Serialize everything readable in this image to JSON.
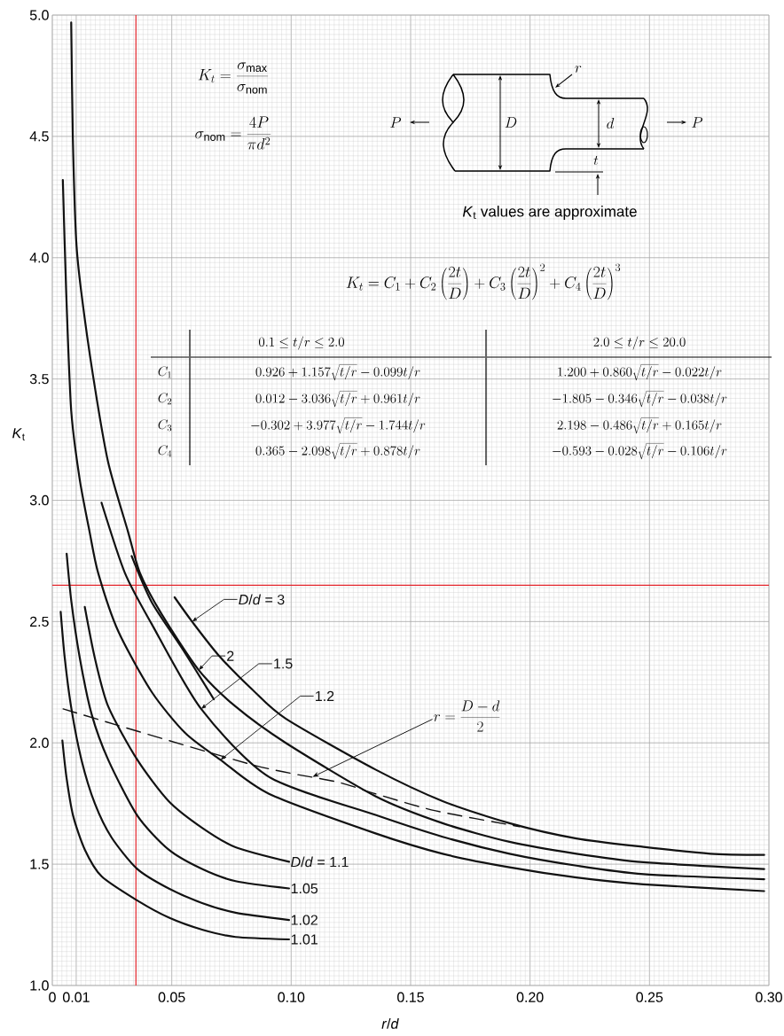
{
  "chart_data": {
    "type": "line",
    "xlabel": "*r*/*d*",
    "ylabel": "*K*$_{t}$",
    "xlim": [
      0,
      0.3
    ],
    "ylim": [
      1.0,
      5.0
    ],
    "xticks": [
      0,
      0.01,
      0.05,
      {
        "value": 0.1,
        "label": "0.10"
      },
      0.15,
      {
        "value": 0.2,
        "label": "0.20"
      },
      0.25,
      {
        "value": 0.3,
        "label": "0.30"
      }
    ],
    "yticks": [
      {
        "value": 1.0,
        "label": "1.0"
      },
      1.5,
      {
        "value": 2.0,
        "label": "2.0"
      },
      2.5,
      {
        "value": 3.0,
        "label": "3.0"
      },
      3.5,
      {
        "value": 4.0,
        "label": "4.0"
      },
      4.5,
      {
        "value": 5.0,
        "label": "5.0"
      }
    ],
    "grid": true,
    "series": [
      {
        "name": "1.01",
        "color": "#111111",
        "x": [
          0.0042,
          0.0059,
          0.0087,
          0.0136,
          0.0206,
          0.0356,
          0.0487,
          0.0627,
          0.0767,
          0.0991
        ],
        "values": [
          2.01,
          1.86,
          1.7,
          1.56,
          1.45,
          1.35,
          1.28,
          1.23,
          1.2,
          1.19
        ]
      },
      {
        "name": "1.02",
        "color": "#111111",
        "x": [
          0.0035,
          0.0052,
          0.008,
          0.0122,
          0.0178,
          0.0248,
          0.0356,
          0.0487,
          0.0627,
          0.0767,
          0.0991
        ],
        "values": [
          2.54,
          2.35,
          2.14,
          1.93,
          1.75,
          1.61,
          1.48,
          1.4,
          1.34,
          1.3,
          1.27
        ]
      },
      {
        "name": "1.05",
        "color": "#111111",
        "x": [
          0.006,
          0.008,
          0.0115,
          0.0164,
          0.0234,
          0.0356,
          0.0487,
          0.0627,
          0.0767,
          0.0991
        ],
        "values": [
          2.78,
          2.58,
          2.35,
          2.12,
          1.93,
          1.7,
          1.56,
          1.48,
          1.43,
          1.4
        ]
      },
      {
        "name": "*D*/*d* = 1.1",
        "color": "#111111",
        "x": [
          0.0136,
          0.0178,
          0.0234,
          0.0356,
          0.0487,
          0.0627,
          0.0767,
          0.0991
        ],
        "values": [
          2.56,
          2.35,
          2.15,
          1.93,
          1.76,
          1.65,
          1.57,
          1.51
        ]
      },
      {
        "name": "1.2",
        "color": "#111111",
        "x": [
          0.0044,
          0.0058,
          0.0079,
          0.0114,
          0.0156,
          0.0192,
          0.0276,
          0.0416,
          0.0557,
          0.0704,
          0.0907,
          0.1353,
          0.1634,
          0.1914,
          0.2194,
          0.2475,
          0.298
        ],
        "values": [
          4.32,
          3.86,
          3.37,
          3.09,
          2.87,
          2.7,
          2.46,
          2.21,
          2.04,
          1.93,
          1.79,
          1.627,
          1.543,
          1.487,
          1.445,
          1.417,
          1.389
        ]
      },
      {
        "name": "1.5",
        "color": "#111111",
        "x": [
          0.0206,
          0.0304,
          0.0416,
          0.0623,
          0.0907,
          0.1353,
          0.1634,
          0.1914,
          0.2194,
          0.2475,
          0.298
        ],
        "values": [
          2.99,
          2.7,
          2.49,
          2.14,
          1.86,
          1.703,
          1.613,
          1.543,
          1.494,
          1.459,
          1.438
        ]
      },
      {
        "name": "2",
        "color": "#111111",
        "x": [
          0.0079,
          0.0086,
          0.01,
          0.0121,
          0.0171,
          0.0233,
          0.0317,
          0.0367,
          0.0458,
          0.0613,
          0.0767,
          0.0977,
          0.1353,
          0.1634,
          0.1914,
          0.2194,
          0.2475,
          0.298
        ],
        "values": [
          4.97,
          4.49,
          4.07,
          3.86,
          3.51,
          3.16,
          2.87,
          2.7,
          2.53,
          2.3,
          2.15,
          2.0,
          1.78,
          1.669,
          1.592,
          1.543,
          1.508,
          1.48
        ]
      },
      {
        "name": "*D*/*d* = 3",
        "color": "#111111",
        "x": [
          0.0512,
          0.0585,
          0.0697,
          0.0837,
          0.0977,
          0.1353,
          0.1634,
          0.1914,
          0.2194,
          0.2475,
          0.2755,
          0.298
        ],
        "values": [
          2.6,
          2.5,
          2.36,
          2.22,
          2.1,
          1.89,
          1.76,
          1.669,
          1.606,
          1.571,
          1.543,
          1.538
        ]
      },
      {
        "color": "#111111",
        "x": [
          0.0332,
          0.0416,
          0.0543,
          0.0676
        ],
        "values": [
          2.77,
          2.58,
          2.39,
          2.18
        ]
      },
      {
        "color": "#111111",
        "line_style": "dashed",
        "x": [
          0.0045,
          0.0837,
          0.1188,
          0.1353,
          0.1605,
          0.1956
        ],
        "values": [
          2.14,
          1.91,
          1.84,
          1.79,
          1.72,
          1.655
        ]
      }
    ],
    "ref_lines": [
      {
        "axis": "x",
        "value": 0.035,
        "color": "#e3242b"
      },
      {
        "axis": "y",
        "value": 2.65,
        "color": "#e3242b"
      }
    ],
    "annotations": [
      "K_t = \\frac{\\sigma_{\\mathrm{max}}}{\\sigma_{\\mathrm{nom}}}",
      "\\sigma_{\\mathrm{nom}} = \\frac{4P}{\\pi d^{2}}",
      "*K*$_{t}$ values are approximate",
      "K_t = C_1 + C_2\\left(\\frac{2t}{D}\\right) + C_3\\left(\\frac{2t}{D}\\right)^{2} + C_4\\left(\\frac{2t}{D}\\right)^{3}",
      "0.1 \\le t/r \\le 2.0",
      "2.0 \\le t/r \\le 20.0",
      "C_1",
      "C_2",
      "C_3",
      "C_4",
      "0.926 + 1.157\\sqrt{t/r} - 0.099t/r",
      "1.200 + 0.860\\sqrt{t/r} - 0.022t/r",
      "0.012 - 3.036\\sqrt{t/r} + 0.961t/r",
      "-1.805 - 0.346\\sqrt{t/r} - 0.038t/r",
      "-0.302 + 3.977\\sqrt{t/r} - 1.744t/r",
      "2.198 - 0.486\\sqrt{t/r} + 0.165t/r",
      "0.365 - 2.098\\sqrt{t/r} + 0.878t/r",
      "-0.593 - 0.028\\sqrt{t/r} - 0.106t/r",
      {
        "text": "r = \\frac{D - d}{2}",
        "x": 0.109,
        "y": 1.86
      },
      "P",
      "D",
      "d",
      "r",
      "t",
      "P"
    ]
  }
}
